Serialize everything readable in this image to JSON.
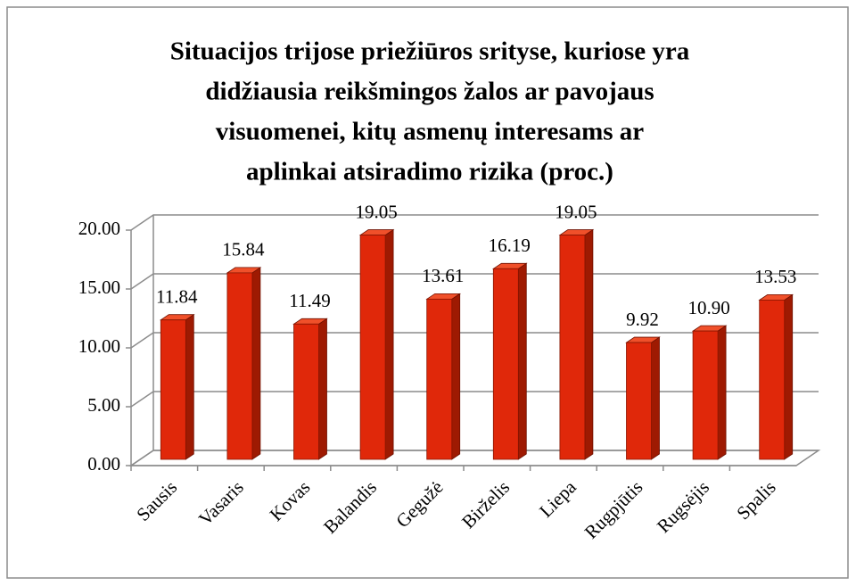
{
  "chart_data": {
    "type": "bar3d",
    "title": [
      "Situacijos trijose priežiūros srityse, kuriose yra",
      "didžiausia reikšmingos žalos ar pavojaus",
      "visuomenei, kitų asmenų interesams ar",
      "aplinkai atsiradimo rizika (proc.)"
    ],
    "categories": [
      "Sausis",
      "Vasaris",
      "Kovas",
      "Balandis",
      "Gegužė",
      "Birželis",
      "Liepa",
      "Rugpjūtis",
      "Rugsėjis",
      "Spalis"
    ],
    "values": [
      11.84,
      15.84,
      11.49,
      19.05,
      13.61,
      16.19,
      19.05,
      9.92,
      10.9,
      13.53
    ],
    "value_labels": [
      "11.84",
      "15.84",
      "11.49",
      "19.05",
      "13.61",
      "16.19",
      "19.05",
      "9.92",
      "10.90",
      "13.53"
    ],
    "color": "#e0280a",
    "ylim": [
      0,
      20
    ],
    "yticks": [
      {
        "value": 0,
        "label": "0.00"
      },
      {
        "value": 5,
        "label": "5.00"
      },
      {
        "value": 10,
        "label": "10.00"
      },
      {
        "value": 15,
        "label": "15.00"
      },
      {
        "value": 20,
        "label": "20.00"
      }
    ],
    "grid": true
  }
}
